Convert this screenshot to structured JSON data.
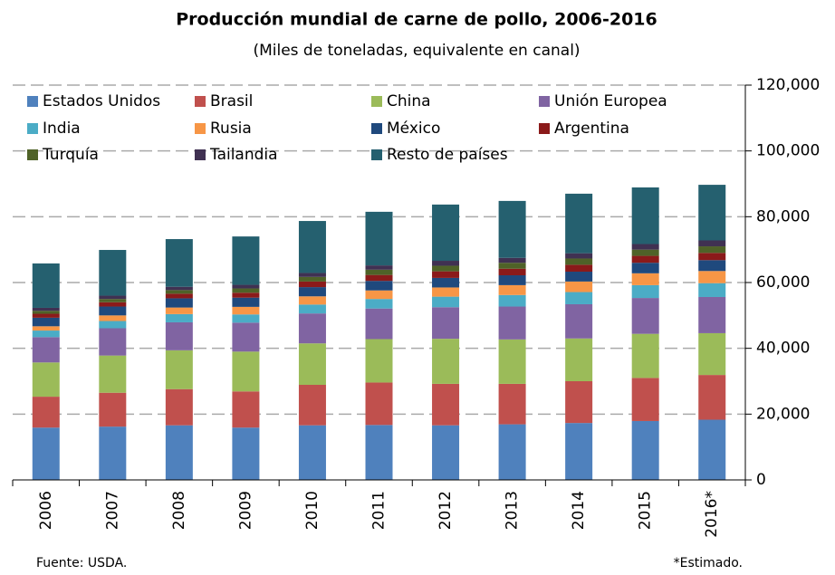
{
  "chart_data": {
    "type": "stacked_bar",
    "title": "Producción mundial de carne de pollo, 2006-2016",
    "subtitle": "(Miles de toneladas, equivalente en canal)",
    "categories": [
      "2006",
      "2007",
      "2008",
      "2009",
      "2010",
      "2011",
      "2012",
      "2013",
      "2014",
      "2015",
      "2016*"
    ],
    "series": [
      {
        "name": "Estados Unidos",
        "color": "#4f81bd",
        "values": [
          15900,
          16200,
          16600,
          15900,
          16600,
          16700,
          16600,
          16900,
          17300,
          17900,
          18300
        ]
      },
      {
        "name": "Brasil",
        "color": "#c0504d",
        "values": [
          9400,
          10300,
          11000,
          11000,
          12300,
          12900,
          12600,
          12300,
          12700,
          13100,
          13600
        ]
      },
      {
        "name": "China",
        "color": "#9bbb59",
        "values": [
          10400,
          11300,
          11800,
          12100,
          12600,
          13200,
          13700,
          13500,
          13000,
          13400,
          12700
        ]
      },
      {
        "name": "Unión Europea",
        "color": "#8064a2",
        "values": [
          7700,
          8300,
          8500,
          8800,
          9100,
          9300,
          9600,
          10000,
          10400,
          10900,
          11000
        ]
      },
      {
        "name": "India",
        "color": "#4bacc6",
        "values": [
          2000,
          2200,
          2500,
          2500,
          2700,
          2900,
          3200,
          3500,
          3700,
          3900,
          4200
        ]
      },
      {
        "name": "Rusia",
        "color": "#f79646",
        "values": [
          1300,
          1700,
          2000,
          2300,
          2500,
          2600,
          2800,
          3000,
          3200,
          3600,
          3700
        ]
      },
      {
        "name": "México",
        "color": "#1f497d",
        "values": [
          2600,
          2700,
          2800,
          2800,
          2800,
          2900,
          2900,
          3000,
          3000,
          3200,
          3300
        ]
      },
      {
        "name": "Argentina",
        "color": "#8b1a1a",
        "values": [
          1200,
          1300,
          1400,
          1500,
          1700,
          1800,
          2000,
          2000,
          2100,
          2100,
          2200
        ]
      },
      {
        "name": "Turquía",
        "color": "#4f6228",
        "values": [
          900,
          1000,
          1100,
          1300,
          1400,
          1600,
          1700,
          1800,
          1900,
          1900,
          2000
        ]
      },
      {
        "name": "Tailandia",
        "color": "#403152",
        "values": [
          900,
          1000,
          1000,
          1100,
          1200,
          1300,
          1500,
          1500,
          1600,
          1700,
          1800
        ]
      },
      {
        "name": "Resto de países",
        "color": "#25606f",
        "values": [
          13500,
          13900,
          14500,
          14700,
          15800,
          16300,
          17100,
          17300,
          18100,
          17200,
          16900
        ]
      }
    ],
    "ylim": [
      0,
      120000
    ],
    "yticks": [
      0,
      {
        "value": 20000,
        "label": "20,000"
      },
      {
        "value": 40000,
        "label": "40,000"
      },
      {
        "value": 60000,
        "label": "60,000"
      },
      {
        "value": 80000,
        "label": "80,000"
      },
      {
        "value": 100000,
        "label": "100,000"
      },
      {
        "value": 120000,
        "label": "120,000"
      }
    ],
    "grid": true,
    "legend": "top",
    "source": "Fuente: USDA.",
    "note": "*Estimado."
  }
}
